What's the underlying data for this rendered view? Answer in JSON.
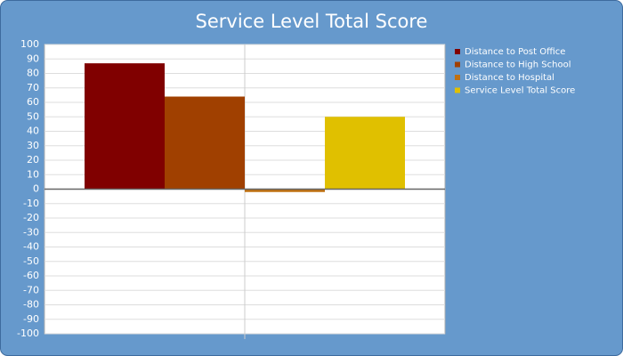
{
  "chart_data": {
    "type": "bar",
    "title": "Service Level Total Score",
    "categories": [
      null
    ],
    "series": [
      {
        "name": "Distance to Post Office",
        "color": "#800000",
        "values": [
          87
        ]
      },
      {
        "name": "Distance to High School",
        "color": "#a04000",
        "values": [
          64
        ]
      },
      {
        "name": "Distance to Hospital",
        "color": "#c07010",
        "values": [
          -2
        ]
      },
      {
        "name": "Service Level Total Score",
        "color": "#e0c000",
        "values": [
          50
        ]
      }
    ],
    "ylim": [
      -100,
      100
    ],
    "yticks": [
      -100,
      -90,
      -80,
      -70,
      -60,
      -50,
      -40,
      -30,
      -20,
      -10,
      0,
      10,
      20,
      30,
      40,
      50,
      60,
      70,
      80,
      90,
      100
    ],
    "grid": true,
    "legend": "right"
  }
}
